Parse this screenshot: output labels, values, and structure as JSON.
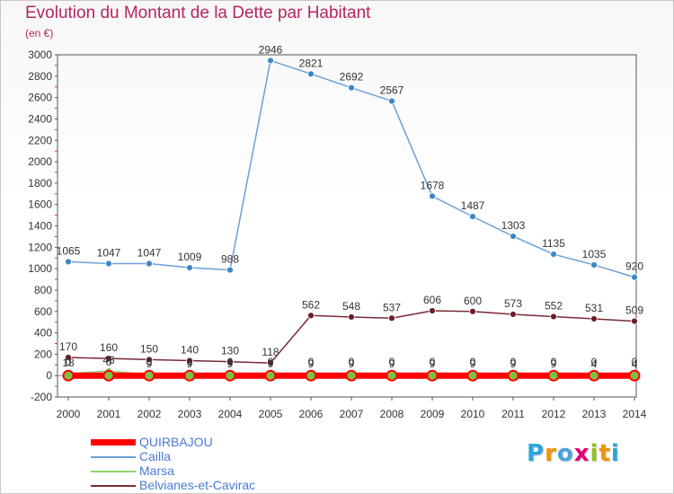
{
  "title": "Evolution du Montant de la Dette par Habitant",
  "subtitle": "(en €)",
  "chart_data": {
    "type": "line",
    "x": [
      2000,
      2001,
      2002,
      2003,
      2004,
      2005,
      2006,
      2007,
      2008,
      2009,
      2010,
      2011,
      2012,
      2013,
      2014
    ],
    "ylim": [
      -200,
      3000
    ],
    "yticks": [
      -200,
      0,
      200,
      400,
      600,
      800,
      1000,
      1200,
      1400,
      1600,
      1800,
      2000,
      2200,
      2400,
      2600,
      2800,
      3000
    ],
    "grid": false,
    "legend": "bottom-left",
    "series": [
      {
        "name": "QUIRBAJOU",
        "color": "#ff0000",
        "marker": "#7ac143",
        "values": [
          0,
          0,
          0,
          0,
          0,
          0,
          0,
          0,
          0,
          0,
          0,
          0,
          0,
          0,
          0
        ],
        "labels": [
          "0",
          "0",
          "0",
          "0",
          "0",
          "0",
          "0",
          "0",
          "0",
          "0",
          "0",
          "0",
          "0",
          "0",
          "0"
        ]
      },
      {
        "name": "Cailla",
        "color": "#6c9fd6",
        "marker": "#3c86c8",
        "values": [
          1065,
          1047,
          1047,
          1009,
          988,
          2946,
          2821,
          2692,
          2567,
          1678,
          1487,
          1303,
          1135,
          1035,
          920
        ],
        "labels": [
          "1065",
          "1047",
          "1047",
          "1009",
          "988",
          "2946",
          "2821",
          "2692",
          "2567",
          "1678",
          "1487",
          "1303",
          "1135",
          "1035",
          "920"
        ]
      },
      {
        "name": "Marsa",
        "color": "#8ed36a",
        "marker": "#7ac143",
        "values": [
          18,
          43,
          9,
          9,
          9,
          9,
          9,
          9,
          9,
          9,
          9,
          9,
          9,
          4,
          4
        ],
        "labels": [
          "18",
          "43",
          "9",
          "9",
          "9",
          "9",
          "9",
          "9",
          "9",
          "9",
          "9",
          "9",
          "9",
          "4",
          "4"
        ]
      },
      {
        "name": "Belvianes-et-Cavirac",
        "color": "#7a2a35",
        "marker": "#6b1e2a",
        "values": [
          170,
          160,
          150,
          140,
          130,
          118,
          562,
          548,
          537,
          606,
          600,
          573,
          552,
          531,
          509
        ],
        "labels": [
          "170",
          "160",
          "150",
          "140",
          "130",
          "118",
          "562",
          "548",
          "537",
          "606",
          "600",
          "573",
          "552",
          "531",
          "509"
        ]
      }
    ]
  },
  "logo": {
    "letters": [
      "P",
      "r",
      "o",
      "x",
      "i",
      "t",
      "i"
    ],
    "colors": [
      "#2aa6e0",
      "#f39200",
      "#4aa3df",
      "#e2007a",
      "#95c11f",
      "#f39200",
      "#2aa6e0"
    ]
  }
}
